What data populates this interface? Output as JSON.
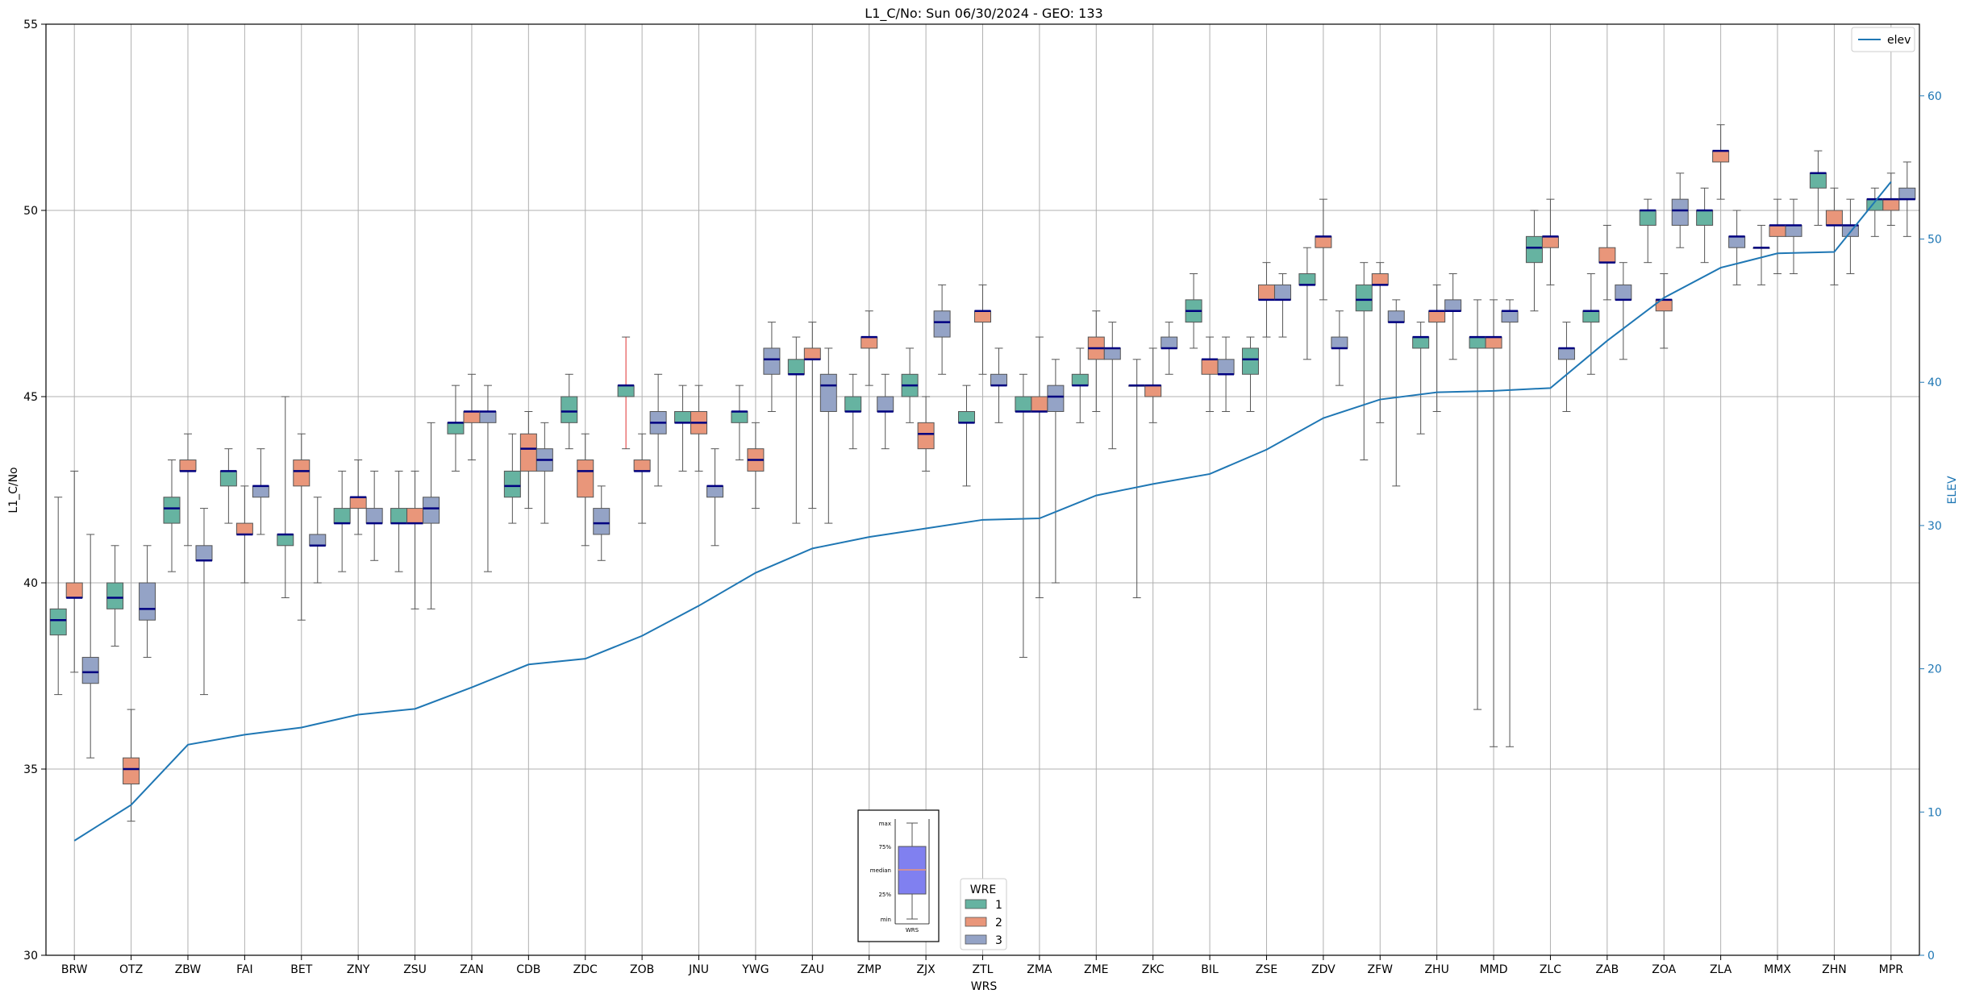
{
  "chart_data": {
    "type": "box",
    "title": "L1_C/No: Sun 06/30/2024 - GEO: 133",
    "xlabel": "WRS",
    "ylabel": "L1_C/No",
    "y2label": "ELEV",
    "ylim": [
      30,
      55
    ],
    "y2lim": [
      0,
      65
    ],
    "yticks": [
      "30",
      "35",
      "40",
      "45",
      "50",
      "55"
    ],
    "y2ticks": [
      "0",
      "10",
      "20",
      "30",
      "40",
      "50",
      "60"
    ],
    "grid": true,
    "categories": [
      "BRW",
      "OTZ",
      "ZBW",
      "FAI",
      "BET",
      "ZNY",
      "ZSU",
      "ZAN",
      "CDB",
      "ZDC",
      "ZOB",
      "JNU",
      "YWG",
      "ZAU",
      "ZMP",
      "ZJX",
      "ZTL",
      "ZMA",
      "ZME",
      "ZKC",
      "BIL",
      "ZSE",
      "ZDV",
      "ZFW",
      "ZHU",
      "MMD",
      "ZLC",
      "ZAB",
      "ZOA",
      "ZLA",
      "MMX",
      "ZHN",
      "MPR"
    ],
    "legend": {
      "title": "WRE",
      "placement": "bottom-center",
      "entries": [
        {
          "label": "1",
          "color": "#66b3a1"
        },
        {
          "label": "2",
          "color": "#e9967a"
        },
        {
          "label": "3",
          "color": "#94a3c6"
        }
      ]
    },
    "line_legend": {
      "label": "elev",
      "color": "#1f77b4",
      "placement": "top-right"
    },
    "elev": [
      8,
      10.5,
      14.7,
      15.4,
      15.9,
      16.8,
      17.2,
      18.7,
      20.3,
      20.7,
      22.3,
      24.4,
      26.7,
      28.4,
      29.2,
      29.8,
      30.4,
      30.5,
      32.1,
      32.9,
      33.6,
      35.3,
      37.5,
      38.8,
      39.3,
      39.4,
      39.6,
      42.9,
      45.9,
      48.0,
      49.0,
      49.1,
      54.0
    ],
    "inset": {
      "labels": [
        "max",
        "75%",
        "median",
        "25%",
        "min"
      ],
      "xlabel": "WRS"
    },
    "series": [
      {
        "name": "1",
        "color": "#66b3a1",
        "boxes": [
          [
            37.0,
            38.6,
            39.0,
            39.3,
            42.3
          ],
          [
            38.3,
            39.3,
            39.6,
            40.0,
            41.0
          ],
          [
            40.3,
            41.6,
            42.0,
            42.3,
            43.3
          ],
          [
            41.6,
            42.6,
            43.0,
            43.0,
            43.6
          ],
          [
            39.6,
            41.0,
            41.3,
            41.3,
            45.0
          ],
          [
            40.3,
            41.6,
            41.6,
            42.0,
            43.0
          ],
          [
            40.3,
            41.6,
            41.6,
            42.0,
            43.0
          ],
          [
            43.0,
            44.0,
            44.3,
            44.3,
            45.3
          ],
          [
            41.6,
            42.3,
            42.6,
            43.0,
            44.0
          ],
          [
            43.6,
            44.3,
            44.6,
            45.0,
            45.6
          ],
          [
            43.6,
            45.0,
            45.3,
            45.3,
            46.6
          ],
          [
            43.0,
            44.3,
            44.3,
            44.6,
            45.3
          ],
          [
            43.3,
            44.3,
            44.6,
            44.6,
            45.3
          ],
          [
            41.6,
            45.6,
            45.6,
            46.0,
            46.6
          ],
          [
            43.6,
            44.6,
            44.6,
            45.0,
            45.6
          ],
          [
            44.3,
            45.0,
            45.3,
            45.6,
            46.3
          ],
          [
            42.6,
            44.3,
            44.3,
            44.6,
            45.3
          ],
          [
            38.0,
            44.6,
            44.6,
            45.0,
            45.6
          ],
          [
            44.3,
            45.3,
            45.3,
            45.6,
            46.3
          ],
          [
            39.6,
            45.3,
            45.3,
            45.3,
            46.0
          ],
          [
            46.3,
            47.0,
            47.3,
            47.6,
            48.3
          ],
          [
            44.6,
            45.6,
            46.0,
            46.3,
            46.6
          ],
          [
            46.0,
            48.0,
            48.0,
            48.3,
            49.0
          ],
          [
            43.3,
            47.3,
            47.6,
            48.0,
            48.6
          ],
          [
            44.0,
            46.3,
            46.6,
            46.6,
            47.0
          ],
          [
            36.6,
            46.3,
            46.6,
            46.6,
            47.6
          ],
          [
            47.3,
            48.6,
            49.0,
            49.3,
            50.0
          ],
          [
            45.6,
            47.0,
            47.3,
            47.3,
            48.3
          ],
          [
            48.6,
            49.6,
            50.0,
            50.0,
            50.3
          ],
          [
            48.6,
            49.6,
            50.0,
            50.0,
            50.6
          ],
          [
            48.0,
            49.0,
            49.0,
            49.0,
            49.6
          ],
          [
            49.6,
            50.6,
            51.0,
            51.0,
            51.6
          ],
          [
            49.3,
            50.0,
            50.3,
            50.3,
            50.6
          ]
        ]
      },
      {
        "name": "2",
        "color": "#e9967a",
        "boxes": [
          [
            37.6,
            39.6,
            39.6,
            40.0,
            43.0
          ],
          [
            33.6,
            34.6,
            35.0,
            35.3,
            36.6
          ],
          [
            41.0,
            43.0,
            43.0,
            43.3,
            44.0
          ],
          [
            40.0,
            41.3,
            41.3,
            41.6,
            42.6
          ],
          [
            39.0,
            42.6,
            43.0,
            43.3,
            44.0
          ],
          [
            41.3,
            42.0,
            42.3,
            42.3,
            43.3
          ],
          [
            39.3,
            41.6,
            41.6,
            42.0,
            43.0
          ],
          [
            43.3,
            44.3,
            44.6,
            44.6,
            45.6
          ],
          [
            42.0,
            43.0,
            43.6,
            44.0,
            44.6
          ],
          [
            41.0,
            42.3,
            43.0,
            43.3,
            44.0
          ],
          [
            41.6,
            43.0,
            43.0,
            43.3,
            44.0
          ],
          [
            43.0,
            44.0,
            44.3,
            44.6,
            45.3
          ],
          [
            42.0,
            43.0,
            43.3,
            43.6,
            44.3
          ],
          [
            42.0,
            46.0,
            46.0,
            46.3,
            47.0
          ],
          [
            45.3,
            46.3,
            46.6,
            46.6,
            47.3
          ],
          [
            43.0,
            43.6,
            44.0,
            44.3,
            45.0
          ],
          [
            45.6,
            47.0,
            47.3,
            47.3,
            48.0
          ],
          [
            39.6,
            44.6,
            44.6,
            45.0,
            46.6
          ],
          [
            44.6,
            46.0,
            46.3,
            46.6,
            47.3
          ],
          [
            44.3,
            45.0,
            45.3,
            45.3,
            46.3
          ],
          [
            44.6,
            45.6,
            46.0,
            46.0,
            46.6
          ],
          [
            46.6,
            47.6,
            47.6,
            48.0,
            48.6
          ],
          [
            47.6,
            49.0,
            49.3,
            49.3,
            50.3
          ],
          [
            44.3,
            48.0,
            48.0,
            48.3,
            48.6
          ],
          [
            44.6,
            47.0,
            47.3,
            47.3,
            48.0
          ],
          [
            35.6,
            46.3,
            46.6,
            46.6,
            47.6
          ],
          [
            48.0,
            49.0,
            49.3,
            49.3,
            50.3
          ],
          [
            47.6,
            48.6,
            48.6,
            49.0,
            49.6
          ],
          [
            46.3,
            47.3,
            47.6,
            47.6,
            48.3
          ],
          [
            50.3,
            51.3,
            51.6,
            51.6,
            52.3
          ],
          [
            48.3,
            49.3,
            49.6,
            49.6,
            50.3
          ],
          [
            48.0,
            49.6,
            49.6,
            50.0,
            50.6
          ],
          [
            49.6,
            50.0,
            50.3,
            50.3,
            51.0
          ]
        ]
      },
      {
        "name": "3",
        "color": "#94a3c6",
        "boxes": [
          [
            35.3,
            37.3,
            37.6,
            38.0,
            41.3
          ],
          [
            38.0,
            39.0,
            39.3,
            40.0,
            41.0
          ],
          [
            37.0,
            40.6,
            40.6,
            41.0,
            42.0
          ],
          [
            41.3,
            42.3,
            42.6,
            42.6,
            43.6
          ],
          [
            40.0,
            41.0,
            41.0,
            41.3,
            42.3
          ],
          [
            40.6,
            41.6,
            41.6,
            42.0,
            43.0
          ],
          [
            39.3,
            41.6,
            42.0,
            42.3,
            44.3
          ],
          [
            40.3,
            44.3,
            44.6,
            44.6,
            45.3
          ],
          [
            41.6,
            43.0,
            43.3,
            43.6,
            44.3
          ],
          [
            40.6,
            41.3,
            41.6,
            42.0,
            42.6
          ],
          [
            42.6,
            44.0,
            44.3,
            44.6,
            45.6
          ],
          [
            41.0,
            42.3,
            42.6,
            42.6,
            43.6
          ],
          [
            44.6,
            45.6,
            46.0,
            46.3,
            47.0
          ],
          [
            41.6,
            44.6,
            45.3,
            45.6,
            46.3
          ],
          [
            43.6,
            44.6,
            44.6,
            45.0,
            45.6
          ],
          [
            45.6,
            46.6,
            47.0,
            47.3,
            48.0
          ],
          [
            44.3,
            45.3,
            45.3,
            45.6,
            46.3
          ],
          [
            40.0,
            44.6,
            45.0,
            45.3,
            46.0
          ],
          [
            43.6,
            46.0,
            46.3,
            46.3,
            47.0
          ],
          [
            45.6,
            46.3,
            46.3,
            46.6,
            47.0
          ],
          [
            44.6,
            45.6,
            45.6,
            46.0,
            46.6
          ],
          [
            46.6,
            47.6,
            47.6,
            48.0,
            48.3
          ],
          [
            45.3,
            46.3,
            46.3,
            46.6,
            47.3
          ],
          [
            42.6,
            47.0,
            47.0,
            47.3,
            47.6
          ],
          [
            46.0,
            47.3,
            47.3,
            47.6,
            48.3
          ],
          [
            35.6,
            47.0,
            47.3,
            47.3,
            47.6
          ],
          [
            44.6,
            46.0,
            46.3,
            46.3,
            47.0
          ],
          [
            46.0,
            47.6,
            47.6,
            48.0,
            48.6
          ],
          [
            49.0,
            49.6,
            50.0,
            50.3,
            51.0
          ],
          [
            48.0,
            49.0,
            49.3,
            49.3,
            50.0
          ],
          [
            48.3,
            49.3,
            49.6,
            49.6,
            50.3
          ],
          [
            48.3,
            49.3,
            49.6,
            49.6,
            50.3
          ],
          [
            49.3,
            50.3,
            50.3,
            50.6,
            51.3
          ]
        ]
      }
    ]
  }
}
